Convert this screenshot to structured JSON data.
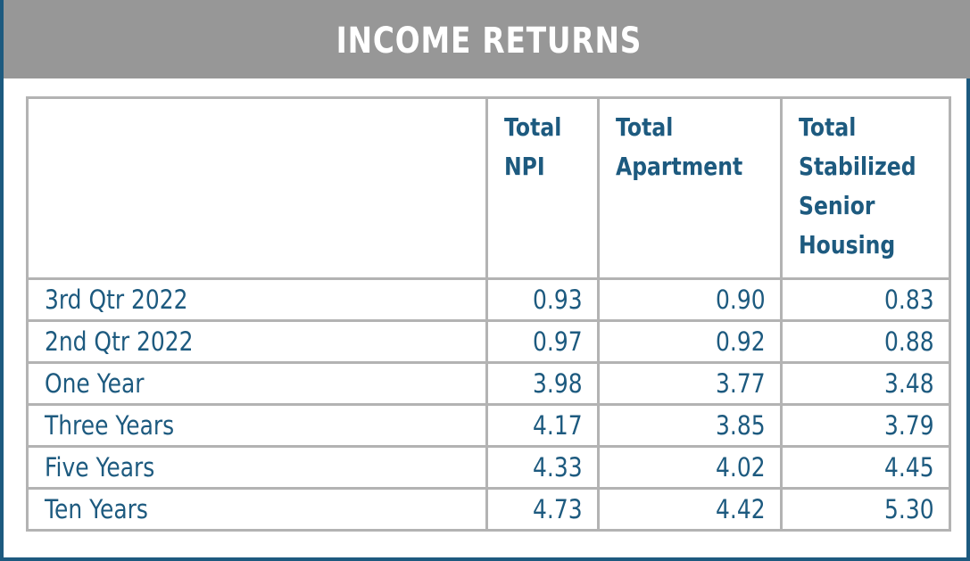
{
  "title": "INCOME RETURNS",
  "columns": [
    {
      "lines": [
        "Total",
        "NPI"
      ]
    },
    {
      "lines": [
        "Total",
        "Apartment"
      ]
    },
    {
      "lines": [
        "Total",
        "Stabilized",
        "Senior",
        "Housing"
      ]
    }
  ],
  "rows": [
    {
      "label": "3rd Qtr 2022",
      "values": [
        "0.93",
        "0.90",
        "0.83"
      ]
    },
    {
      "label": "2nd Qtr 2022",
      "values": [
        "0.97",
        "0.92",
        "0.88"
      ]
    },
    {
      "label": "One Year",
      "values": [
        "3.98",
        "3.77",
        "3.48"
      ]
    },
    {
      "label": "Three Years",
      "values": [
        "4.17",
        "3.85",
        "3.79"
      ]
    },
    {
      "label": "Five Years",
      "values": [
        "4.33",
        "4.02",
        "4.45"
      ]
    },
    {
      "label": "Ten Years",
      "values": [
        "4.73",
        "4.42",
        "5.30"
      ]
    }
  ],
  "colors": {
    "header_bg": "#979797",
    "accent": "#1d5a7f",
    "grid": "#b3b3b3"
  }
}
